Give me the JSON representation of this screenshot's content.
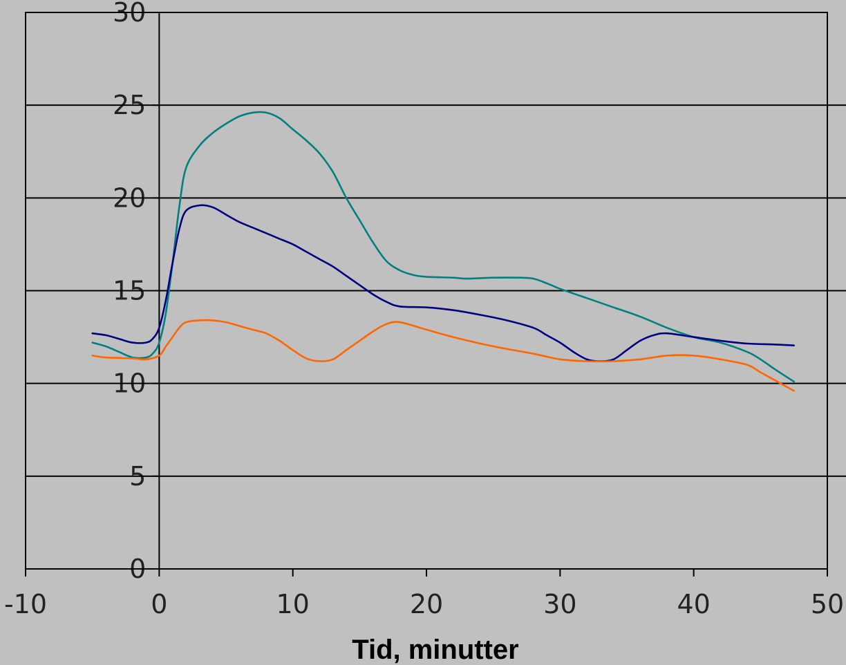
{
  "chart_data": {
    "type": "line",
    "title": "",
    "xlabel": "Tid, minutter",
    "ylabel": "",
    "xlim": [
      -10,
      50
    ],
    "ylim": [
      0,
      30
    ],
    "x_ticks": [
      -10,
      0,
      10,
      20,
      30,
      40,
      50
    ],
    "y_ticks": [
      0,
      5,
      10,
      15,
      20,
      25,
      30
    ],
    "x_tick_labels": [
      "-10",
      "0",
      "10",
      "20",
      "30",
      "40",
      "50"
    ],
    "y_tick_labels": [
      "0",
      "5",
      "10",
      "15",
      "20",
      "25",
      "30"
    ],
    "grid": "horizontal",
    "legend": "none",
    "series": [
      {
        "color": "#008080",
        "points": [
          [
            -5,
            12.2
          ],
          [
            -4,
            12.0
          ],
          [
            -3,
            11.7
          ],
          [
            -2,
            11.4
          ],
          [
            -1,
            11.4
          ],
          [
            -0.5,
            11.6
          ],
          [
            0,
            12.2
          ],
          [
            0.5,
            13.8
          ],
          [
            1,
            16.5
          ],
          [
            1.5,
            19.5
          ],
          [
            2,
            21.6
          ],
          [
            3,
            22.8
          ],
          [
            4,
            23.5
          ],
          [
            5,
            24.0
          ],
          [
            6,
            24.4
          ],
          [
            7,
            24.6
          ],
          [
            8,
            24.6
          ],
          [
            9,
            24.3
          ],
          [
            10,
            23.7
          ],
          [
            11,
            23.1
          ],
          [
            12,
            22.4
          ],
          [
            13,
            21.4
          ],
          [
            14,
            20.0
          ],
          [
            15,
            18.8
          ],
          [
            16,
            17.6
          ],
          [
            17,
            16.6
          ],
          [
            18,
            16.1
          ],
          [
            19,
            15.85
          ],
          [
            20,
            15.75
          ],
          [
            22,
            15.7
          ],
          [
            23,
            15.65
          ],
          [
            25,
            15.7
          ],
          [
            27,
            15.7
          ],
          [
            28,
            15.65
          ],
          [
            29,
            15.4
          ],
          [
            30,
            15.1
          ],
          [
            32,
            14.6
          ],
          [
            34,
            14.1
          ],
          [
            36,
            13.6
          ],
          [
            38,
            13.0
          ],
          [
            40,
            12.5
          ],
          [
            42,
            12.2
          ],
          [
            44,
            11.7
          ],
          [
            45,
            11.3
          ],
          [
            46,
            10.8
          ],
          [
            47.5,
            10.1
          ]
        ]
      },
      {
        "color": "#000080",
        "points": [
          [
            -5,
            12.7
          ],
          [
            -4,
            12.6
          ],
          [
            -3,
            12.4
          ],
          [
            -2,
            12.2
          ],
          [
            -1,
            12.2
          ],
          [
            -0.5,
            12.4
          ],
          [
            0,
            13.0
          ],
          [
            0.5,
            14.5
          ],
          [
            1,
            16.5
          ],
          [
            1.5,
            18.3
          ],
          [
            2,
            19.3
          ],
          [
            3,
            19.6
          ],
          [
            4,
            19.5
          ],
          [
            5,
            19.1
          ],
          [
            6,
            18.7
          ],
          [
            7,
            18.4
          ],
          [
            8,
            18.1
          ],
          [
            9,
            17.8
          ],
          [
            10,
            17.5
          ],
          [
            11,
            17.1
          ],
          [
            12,
            16.7
          ],
          [
            13,
            16.3
          ],
          [
            14,
            15.8
          ],
          [
            15,
            15.3
          ],
          [
            16,
            14.8
          ],
          [
            17,
            14.4
          ],
          [
            18,
            14.15
          ],
          [
            20,
            14.1
          ],
          [
            22,
            13.95
          ],
          [
            24,
            13.7
          ],
          [
            26,
            13.4
          ],
          [
            28,
            13.0
          ],
          [
            29,
            12.6
          ],
          [
            30,
            12.2
          ],
          [
            31,
            11.7
          ],
          [
            32,
            11.3
          ],
          [
            33,
            11.2
          ],
          [
            34,
            11.3
          ],
          [
            35,
            11.8
          ],
          [
            36,
            12.3
          ],
          [
            37,
            12.6
          ],
          [
            38,
            12.7
          ],
          [
            40,
            12.5
          ],
          [
            42,
            12.3
          ],
          [
            44,
            12.15
          ],
          [
            46,
            12.1
          ],
          [
            47.5,
            12.05
          ]
        ]
      },
      {
        "color": "#ff6600",
        "points": [
          [
            -5,
            11.5
          ],
          [
            -4,
            11.4
          ],
          [
            -2,
            11.35
          ],
          [
            -1,
            11.3
          ],
          [
            0,
            11.5
          ],
          [
            0.5,
            12.0
          ],
          [
            1,
            12.5
          ],
          [
            1.5,
            13.0
          ],
          [
            2,
            13.3
          ],
          [
            3,
            13.4
          ],
          [
            4,
            13.4
          ],
          [
            5,
            13.3
          ],
          [
            6,
            13.1
          ],
          [
            7,
            12.9
          ],
          [
            8,
            12.7
          ],
          [
            9,
            12.3
          ],
          [
            10,
            11.8
          ],
          [
            11,
            11.35
          ],
          [
            12,
            11.2
          ],
          [
            13,
            11.3
          ],
          [
            14,
            11.8
          ],
          [
            15,
            12.3
          ],
          [
            16,
            12.8
          ],
          [
            17,
            13.2
          ],
          [
            18,
            13.3
          ],
          [
            20,
            12.9
          ],
          [
            22,
            12.5
          ],
          [
            25,
            12.0
          ],
          [
            28,
            11.6
          ],
          [
            30,
            11.3
          ],
          [
            32,
            11.2
          ],
          [
            34,
            11.2
          ],
          [
            36,
            11.3
          ],
          [
            38,
            11.5
          ],
          [
            40,
            11.5
          ],
          [
            42,
            11.3
          ],
          [
            44,
            11.0
          ],
          [
            45,
            10.6
          ],
          [
            46,
            10.2
          ],
          [
            47.5,
            9.6
          ]
        ]
      }
    ]
  },
  "colors": {
    "background": "#c0c0c0",
    "axis": "#000000",
    "gridline": "#000000"
  }
}
